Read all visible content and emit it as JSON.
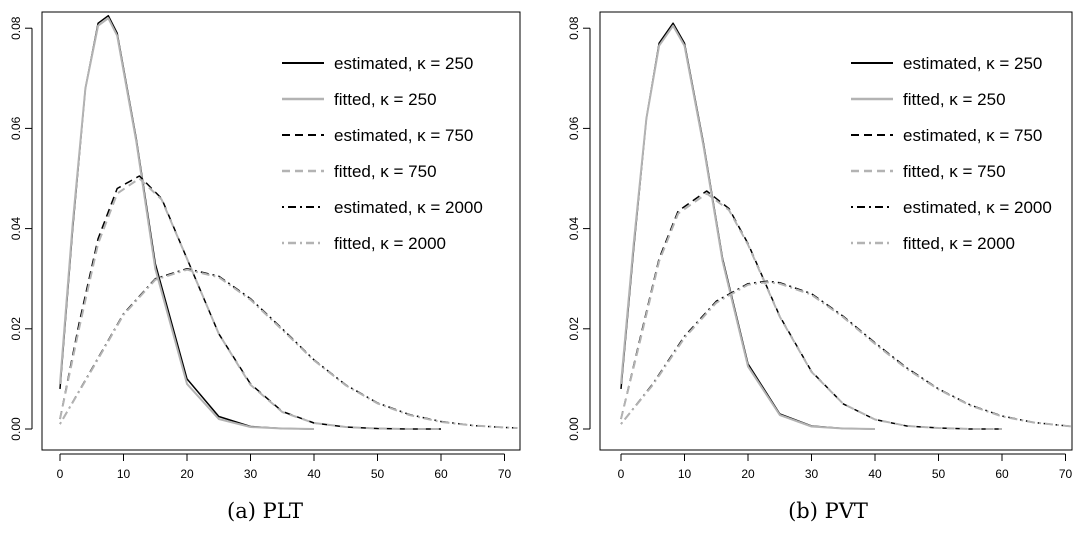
{
  "chart_data": [
    {
      "type": "line",
      "caption": "(a)  PLT",
      "xlim": [
        0,
        72
      ],
      "ylim": [
        0,
        0.083
      ],
      "x_ticks": [
        "0",
        "10",
        "20",
        "30",
        "40",
        "50",
        "60",
        "70"
      ],
      "y_ticks": [
        "0.00",
        "0.02",
        "0.04",
        "0.06",
        "0.08"
      ],
      "legend_position": "top-right",
      "series": [
        {
          "name": "estimated, κ = 250",
          "style": "solid",
          "color": "#000000",
          "x": [
            0,
            2,
            4,
            6,
            7.6,
            9,
            12,
            15,
            20,
            25,
            30,
            35,
            40
          ],
          "y": [
            0.008,
            0.04,
            0.068,
            0.081,
            0.0825,
            0.079,
            0.058,
            0.033,
            0.01,
            0.0025,
            0.0005,
            0.0001,
            0.0
          ]
        },
        {
          "name": "fitted, κ = 250",
          "style": "solid",
          "color": "#b3b3b3",
          "x": [
            0,
            2,
            4,
            6,
            7.6,
            9,
            12,
            15,
            20,
            25,
            30,
            35,
            40
          ],
          "y": [
            0.009,
            0.041,
            0.068,
            0.0805,
            0.082,
            0.0785,
            0.0575,
            0.032,
            0.009,
            0.002,
            0.0004,
            0.0001,
            0.0
          ]
        },
        {
          "name": "estimated, κ = 750",
          "style": "dashed",
          "color": "#000000",
          "x": [
            0,
            3,
            6,
            9,
            12.5,
            16,
            20,
            25,
            30,
            35,
            40,
            45,
            50,
            55,
            60
          ],
          "y": [
            0.002,
            0.021,
            0.038,
            0.048,
            0.0505,
            0.046,
            0.034,
            0.019,
            0.009,
            0.0035,
            0.0012,
            0.0004,
            0.0001,
            0.0,
            0.0
          ]
        },
        {
          "name": "fitted, κ = 750",
          "style": "dashed",
          "color": "#b3b3b3",
          "x": [
            0,
            3,
            6,
            9,
            12.5,
            16,
            20,
            25,
            30,
            35,
            40,
            45,
            50,
            55,
            60
          ],
          "y": [
            0.002,
            0.02,
            0.037,
            0.047,
            0.05,
            0.0458,
            0.034,
            0.019,
            0.0088,
            0.0034,
            0.0012,
            0.0004,
            0.0001,
            0.0,
            0.0
          ]
        },
        {
          "name": "estimated, κ = 2000",
          "style": "dotdash",
          "color": "#000000",
          "x": [
            0,
            5,
            10,
            15,
            20,
            25,
            30,
            35,
            40,
            45,
            50,
            55,
            60,
            65,
            70,
            72
          ],
          "y": [
            0.001,
            0.012,
            0.023,
            0.03,
            0.032,
            0.0305,
            0.026,
            0.02,
            0.0138,
            0.0088,
            0.0052,
            0.0029,
            0.0015,
            0.0007,
            0.0003,
            0.0002
          ]
        },
        {
          "name": "fitted, κ = 2000",
          "style": "dotdash",
          "color": "#b3b3b3",
          "x": [
            0,
            5,
            10,
            15,
            20,
            25,
            30,
            35,
            40,
            45,
            50,
            55,
            60,
            65,
            70,
            72
          ],
          "y": [
            0.001,
            0.0118,
            0.0228,
            0.0298,
            0.0318,
            0.0303,
            0.0258,
            0.0198,
            0.0137,
            0.0087,
            0.0051,
            0.0028,
            0.0014,
            0.0007,
            0.0003,
            0.0002
          ]
        }
      ]
    },
    {
      "type": "line",
      "caption": "(b)  PVT",
      "xlim": [
        0,
        71
      ],
      "ylim": [
        0,
        0.0815
      ],
      "x_ticks": [
        "0",
        "10",
        "20",
        "30",
        "40",
        "50",
        "60",
        "70"
      ],
      "y_ticks": [
        "0.00",
        "0.02",
        "0.04",
        "0.06",
        "0.08"
      ],
      "legend_position": "top-right",
      "series": [
        {
          "name": "estimated, κ = 250",
          "style": "solid",
          "color": "#000000",
          "x": [
            0,
            2,
            4,
            6,
            8.2,
            10,
            13,
            16,
            20,
            25,
            30,
            35,
            40
          ],
          "y": [
            0.008,
            0.036,
            0.062,
            0.077,
            0.081,
            0.077,
            0.057,
            0.034,
            0.013,
            0.003,
            0.0006,
            0.0001,
            0.0
          ]
        },
        {
          "name": "fitted, κ = 250",
          "style": "solid",
          "color": "#b3b3b3",
          "x": [
            0,
            2,
            4,
            6,
            8.2,
            10,
            13,
            16,
            20,
            25,
            30,
            35,
            40
          ],
          "y": [
            0.009,
            0.037,
            0.062,
            0.0765,
            0.0805,
            0.0765,
            0.0565,
            0.0335,
            0.0125,
            0.0028,
            0.0005,
            0.0001,
            0.0
          ]
        },
        {
          "name": "estimated, κ = 750",
          "style": "dashed",
          "color": "#000000",
          "x": [
            0,
            3,
            6,
            9,
            13.5,
            17,
            20,
            25,
            30,
            35,
            40,
            45,
            50,
            55,
            60
          ],
          "y": [
            0.002,
            0.018,
            0.034,
            0.0435,
            0.0475,
            0.044,
            0.037,
            0.0225,
            0.0115,
            0.005,
            0.0019,
            0.0006,
            0.0002,
            0.0,
            0.0
          ]
        },
        {
          "name": "fitted, κ = 750",
          "style": "dashed",
          "color": "#b3b3b3",
          "x": [
            0,
            3,
            6,
            9,
            13.5,
            17,
            20,
            25,
            30,
            35,
            40,
            45,
            50,
            55,
            60
          ],
          "y": [
            0.002,
            0.0175,
            0.0335,
            0.043,
            0.047,
            0.0437,
            0.0368,
            0.0224,
            0.0114,
            0.005,
            0.0019,
            0.0006,
            0.0002,
            0.0,
            0.0
          ]
        },
        {
          "name": "estimated, κ = 2000",
          "style": "dotdash",
          "color": "#000000",
          "x": [
            0,
            5,
            10,
            15,
            20,
            23,
            25,
            30,
            35,
            40,
            45,
            50,
            55,
            60,
            65,
            71
          ],
          "y": [
            0.001,
            0.009,
            0.0185,
            0.0255,
            0.029,
            0.0295,
            0.0292,
            0.027,
            0.0225,
            0.0172,
            0.0122,
            0.008,
            0.0048,
            0.0026,
            0.0013,
            0.0005
          ]
        },
        {
          "name": "fitted, κ = 2000",
          "style": "dotdash",
          "color": "#b3b3b3",
          "x": [
            0,
            5,
            10,
            15,
            20,
            23,
            25,
            30,
            35,
            40,
            45,
            50,
            55,
            60,
            65,
            71
          ],
          "y": [
            0.001,
            0.0088,
            0.0182,
            0.0252,
            0.0288,
            0.0293,
            0.029,
            0.0268,
            0.0223,
            0.017,
            0.012,
            0.0079,
            0.0047,
            0.0025,
            0.0013,
            0.0005
          ]
        }
      ]
    }
  ]
}
